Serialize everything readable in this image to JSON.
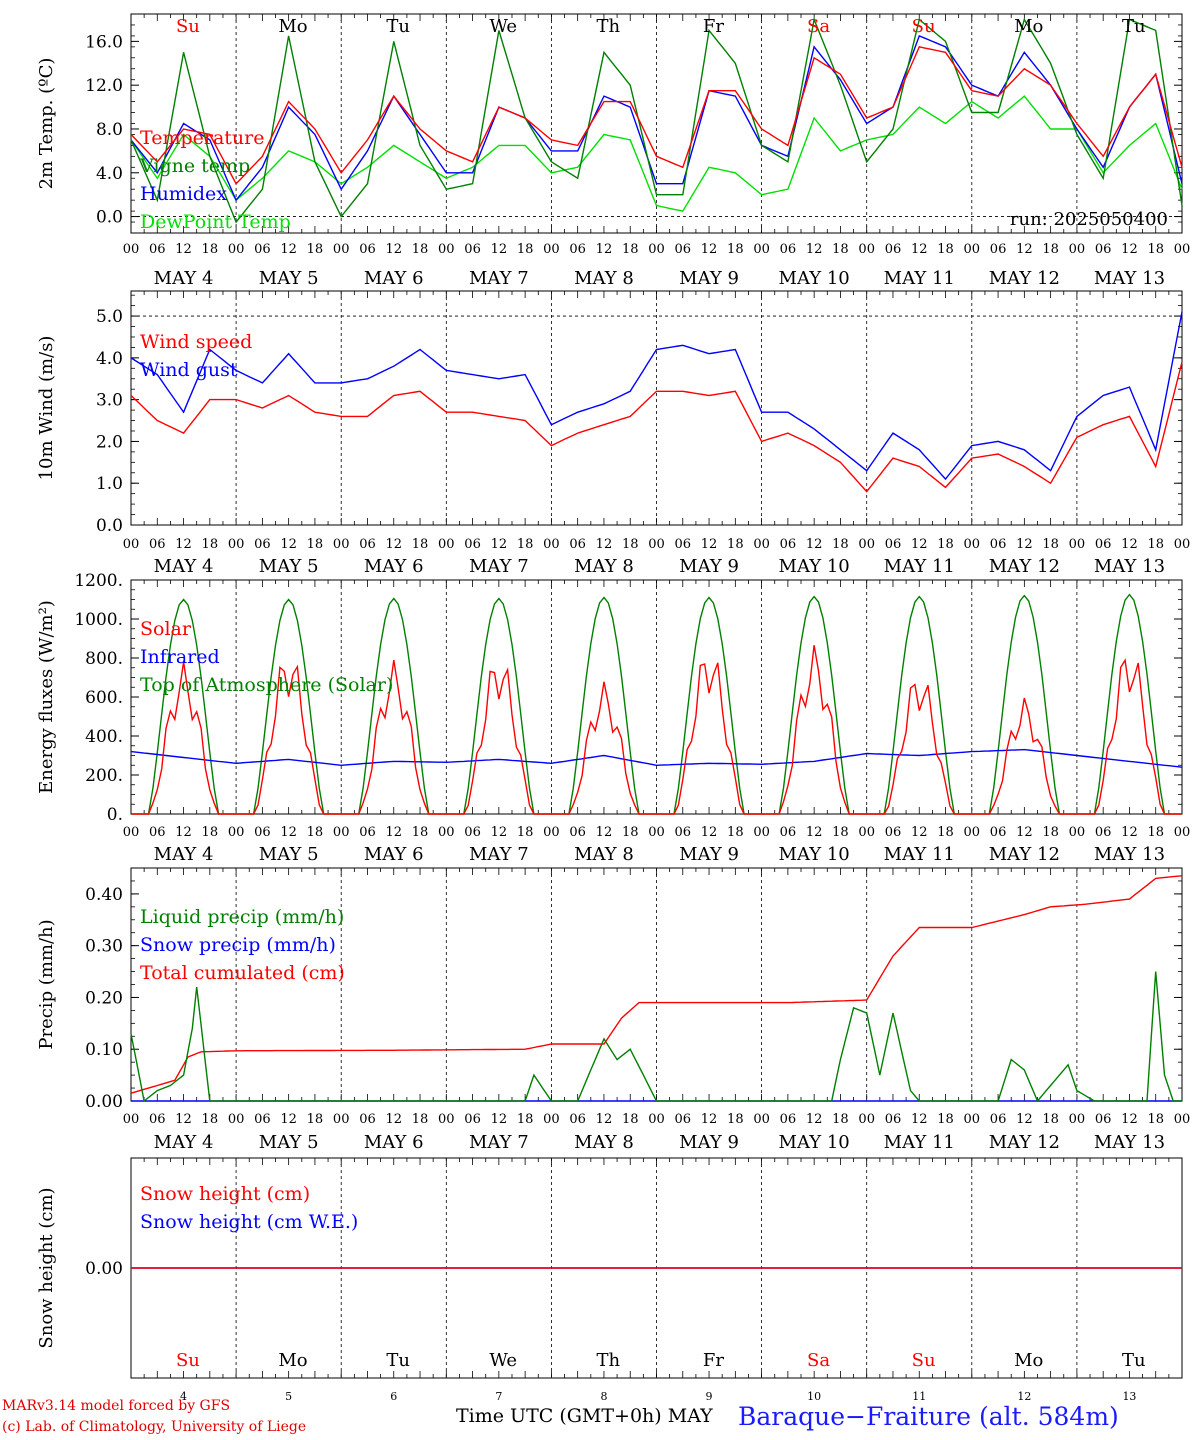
{
  "colors": {
    "red": "#ff0000",
    "green": "#008000",
    "blue": "#0000ff",
    "lightgreen": "#00e000",
    "axis": "#000000"
  },
  "x_axis": {
    "hour_labels": [
      "00",
      "06",
      "12",
      "18"
    ],
    "date_labels": [
      "MAY  4",
      "MAY  5",
      "MAY  6",
      "MAY  7",
      "MAY  8",
      "MAY  9",
      "MAY 10",
      "MAY 11",
      "MAY 12",
      "MAY 13"
    ],
    "day_names": [
      "Su",
      "Mo",
      "Tu",
      "We",
      "Th",
      "Fr",
      "Sa",
      "Su",
      "Mo",
      "Tu"
    ],
    "day_numbers": [
      "4",
      "5",
      "6",
      "7",
      "8",
      "9",
      "10",
      "11",
      "12",
      "13"
    ],
    "weekend_flags": [
      true,
      false,
      false,
      false,
      false,
      false,
      true,
      true,
      false,
      false
    ],
    "title": "Time UTC (GMT+0h)",
    "month": "MAY"
  },
  "footer": {
    "credit_line1": "MARv3.14 model forced by GFS",
    "credit_line2": "(c) Lab. of Climatology, University of Liege",
    "station": "Baraque−Fraiture (alt. 584m)"
  },
  "chart_data": [
    {
      "type": "line",
      "ylabel": "2m Temp. (ºC)",
      "ylim": [
        -1.5,
        18.5
      ],
      "yticks": [
        0,
        4,
        8,
        12,
        16
      ],
      "ytick_labels": [
        "0.0",
        "4.0",
        "8.0",
        "12.0",
        "16.0"
      ],
      "dashed_line": 0,
      "annotation": "run: 2025050400",
      "legend_placement": "top-left",
      "x_hours": [
        0,
        6,
        12,
        18,
        24,
        30,
        36,
        42,
        48,
        54,
        60,
        66,
        72,
        78,
        84,
        90,
        96,
        102,
        108,
        114,
        120,
        126,
        132,
        138,
        144,
        150,
        156,
        162,
        168,
        174,
        180,
        186,
        192,
        198,
        204,
        210,
        216,
        222,
        228,
        234,
        240
      ],
      "series": [
        {
          "name": "Temperature",
          "color": "#ff0000",
          "values": [
            7.5,
            5.0,
            8.0,
            7.5,
            3.0,
            5.5,
            10.5,
            8.0,
            4.0,
            7.0,
            11.0,
            8.0,
            6.0,
            5.0,
            10.0,
            9.0,
            7.0,
            6.5,
            10.5,
            10.5,
            5.5,
            4.5,
            11.5,
            11.5,
            8.0,
            6.5,
            14.5,
            13.0,
            9.0,
            10.0,
            15.5,
            15.0,
            11.5,
            11.0,
            13.5,
            12.0,
            8.5,
            5.5,
            10.0,
            13.0,
            4.5
          ]
        },
        {
          "name": "Vigne temp",
          "color": "#008000",
          "values": [
            7.0,
            1.5,
            15.0,
            5.5,
            -0.5,
            2.5,
            16.5,
            5.0,
            0.0,
            3.0,
            16.0,
            6.5,
            2.5,
            3.0,
            17.0,
            9.0,
            5.0,
            3.5,
            15.0,
            12.0,
            2.0,
            2.0,
            17.0,
            14.0,
            6.5,
            5.0,
            18.0,
            12.0,
            5.0,
            8.0,
            18.0,
            16.0,
            9.5,
            9.5,
            18.0,
            14.0,
            7.5,
            3.5,
            18.0,
            17.0,
            1.0
          ]
        },
        {
          "name": "Humidex",
          "color": "#0000ff",
          "values": [
            7.0,
            4.0,
            8.5,
            7.0,
            1.5,
            4.5,
            10.0,
            7.5,
            2.5,
            6.0,
            11.0,
            7.5,
            4.0,
            4.0,
            10.0,
            9.0,
            6.0,
            6.0,
            11.0,
            10.0,
            3.0,
            3.0,
            11.5,
            11.0,
            6.5,
            5.5,
            15.5,
            12.5,
            8.5,
            10.0,
            16.5,
            15.5,
            12.0,
            11.0,
            15.0,
            12.0,
            8.0,
            4.5,
            10.0,
            13.0,
            3.0
          ]
        },
        {
          "name": "DewPoint Temp",
          "color": "#00e000",
          "values": [
            7.0,
            3.5,
            7.5,
            5.5,
            1.5,
            3.5,
            6.0,
            5.0,
            3.0,
            4.5,
            6.5,
            5.0,
            3.5,
            4.5,
            6.5,
            6.5,
            4.0,
            4.5,
            7.5,
            7.0,
            1.0,
            0.5,
            4.5,
            4.0,
            2.0,
            2.5,
            9.0,
            6.0,
            7.0,
            7.5,
            10.0,
            8.5,
            10.5,
            9.0,
            11.0,
            8.0,
            8.0,
            4.0,
            6.5,
            8.5,
            2.5
          ]
        }
      ]
    },
    {
      "type": "line",
      "ylabel": "10m Wind (m/s)",
      "ylim": [
        0,
        5.6
      ],
      "yticks": [
        0,
        1,
        2,
        3,
        4,
        5
      ],
      "ytick_labels": [
        "0.0",
        "1.0",
        "2.0",
        "3.0",
        "4.0",
        "5.0"
      ],
      "dashed_line": 5,
      "legend_placement": "top-left",
      "x_hours": [
        0,
        6,
        12,
        18,
        24,
        30,
        36,
        42,
        48,
        54,
        60,
        66,
        72,
        78,
        84,
        90,
        96,
        102,
        108,
        114,
        120,
        126,
        132,
        138,
        144,
        150,
        156,
        162,
        168,
        174,
        180,
        186,
        192,
        198,
        204,
        210,
        216,
        222,
        228,
        234,
        240
      ],
      "series": [
        {
          "name": "Wind speed",
          "color": "#ff0000",
          "values": [
            3.1,
            2.5,
            2.2,
            3.0,
            3.0,
            2.8,
            3.1,
            2.7,
            2.6,
            2.6,
            3.1,
            3.2,
            2.7,
            2.7,
            2.6,
            2.5,
            1.9,
            2.2,
            2.4,
            2.6,
            3.2,
            3.2,
            3.1,
            3.2,
            2.0,
            2.2,
            1.9,
            1.5,
            0.8,
            1.6,
            1.4,
            0.9,
            1.6,
            1.7,
            1.4,
            1.0,
            2.1,
            2.4,
            2.6,
            1.4,
            3.9
          ]
        },
        {
          "name": "Wind gust",
          "color": "#0000ff",
          "values": [
            4.0,
            3.6,
            2.7,
            4.2,
            3.7,
            3.4,
            4.1,
            3.4,
            3.4,
            3.5,
            3.8,
            4.2,
            3.7,
            3.6,
            3.5,
            3.6,
            2.4,
            2.7,
            2.9,
            3.2,
            4.2,
            4.3,
            4.1,
            4.2,
            2.7,
            2.7,
            2.3,
            1.8,
            1.3,
            2.2,
            1.8,
            1.1,
            1.9,
            2.0,
            1.8,
            1.3,
            2.6,
            3.1,
            3.3,
            1.8,
            5.1
          ]
        }
      ]
    },
    {
      "type": "line",
      "ylabel": "Energy fluxes (W/m²)",
      "ylim": [
        0,
        1200
      ],
      "yticks": [
        0,
        200,
        400,
        600,
        800,
        1000,
        1200
      ],
      "ytick_labels": [
        "0.",
        "200.",
        "400.",
        "600.",
        "800.",
        "1000.",
        "1200."
      ],
      "legend_placement": "top-left",
      "series": [
        {
          "name": "Solar",
          "color": "#ff0000",
          "daily_peaks": [
            780,
            860,
            790,
            840,
            680,
            880,
            870,
            750,
            600,
            880
          ]
        },
        {
          "name": "Infrared",
          "color": "#0000ff",
          "x_hours": [
            0,
            12,
            24,
            36,
            48,
            60,
            72,
            84,
            96,
            108,
            120,
            132,
            144,
            156,
            168,
            180,
            192,
            204,
            216,
            228,
            240
          ],
          "values": [
            320,
            290,
            260,
            280,
            250,
            270,
            265,
            280,
            260,
            300,
            250,
            260,
            255,
            270,
            310,
            300,
            320,
            330,
            300,
            270,
            240
          ]
        },
        {
          "name": "Top of Atmosphere (Solar)",
          "color": "#008000",
          "daily_peaks": [
            1100,
            1100,
            1105,
            1105,
            1110,
            1110,
            1115,
            1115,
            1120,
            1125
          ]
        }
      ]
    },
    {
      "type": "line",
      "ylabel": "Precip (mm/h)",
      "ylim": [
        0,
        0.45
      ],
      "yticks": [
        0,
        0.1,
        0.2,
        0.3,
        0.4
      ],
      "ytick_labels": [
        "0.00",
        "0.10",
        "0.20",
        "0.30",
        "0.40"
      ],
      "legend_placement": "top-left",
      "series": [
        {
          "name": "Liquid precip (mm/h)",
          "color": "#008000",
          "x_hours": [
            0,
            3,
            6,
            9,
            12,
            14,
            15,
            18,
            24,
            60,
            90,
            92,
            96,
            102,
            108,
            111,
            114,
            117,
            120,
            160,
            162,
            165,
            168,
            171,
            174,
            178,
            180,
            198,
            201,
            204,
            207,
            214,
            216,
            220,
            232,
            234,
            236,
            238,
            240
          ],
          "values": [
            0.13,
            0.0,
            0.02,
            0.03,
            0.05,
            0.14,
            0.22,
            0.0,
            0.0,
            0.0,
            0.0,
            0.05,
            0.0,
            0.0,
            0.12,
            0.08,
            0.1,
            0.05,
            0.0,
            0.0,
            0.08,
            0.18,
            0.17,
            0.05,
            0.17,
            0.02,
            0.0,
            0.0,
            0.08,
            0.06,
            0.0,
            0.07,
            0.02,
            0.0,
            0.0,
            0.25,
            0.05,
            0.0,
            0.0
          ]
        },
        {
          "name": "Snow precip (mm/h)",
          "color": "#0000ff",
          "x_hours": [
            0,
            240
          ],
          "values": [
            0.0,
            0.0
          ]
        },
        {
          "name": "Total cumulated (cm)",
          "color": "#ff0000",
          "x_hours": [
            0,
            10,
            13,
            16,
            24,
            60,
            90,
            96,
            108,
            112,
            116,
            120,
            150,
            168,
            174,
            180,
            192,
            204,
            210,
            218,
            228,
            234,
            240
          ],
          "values": [
            0.015,
            0.04,
            0.085,
            0.095,
            0.097,
            0.098,
            0.1,
            0.11,
            0.11,
            0.16,
            0.19,
            0.19,
            0.19,
            0.195,
            0.28,
            0.335,
            0.335,
            0.36,
            0.375,
            0.38,
            0.39,
            0.43,
            0.435
          ]
        }
      ]
    },
    {
      "type": "line",
      "ylabel": "Snow height (cm)",
      "yticks": [
        0
      ],
      "ytick_labels": [
        "0.00"
      ],
      "legend_placement": "top-left",
      "series": [
        {
          "name": "Snow height (cm)",
          "color": "#ff0000",
          "x_hours": [
            0,
            240
          ],
          "values": [
            0,
            0
          ]
        },
        {
          "name": "Snow height (cm W.E.)",
          "color": "#0000ff",
          "x_hours": [
            0,
            240
          ],
          "values": [
            0,
            0
          ]
        }
      ]
    }
  ]
}
